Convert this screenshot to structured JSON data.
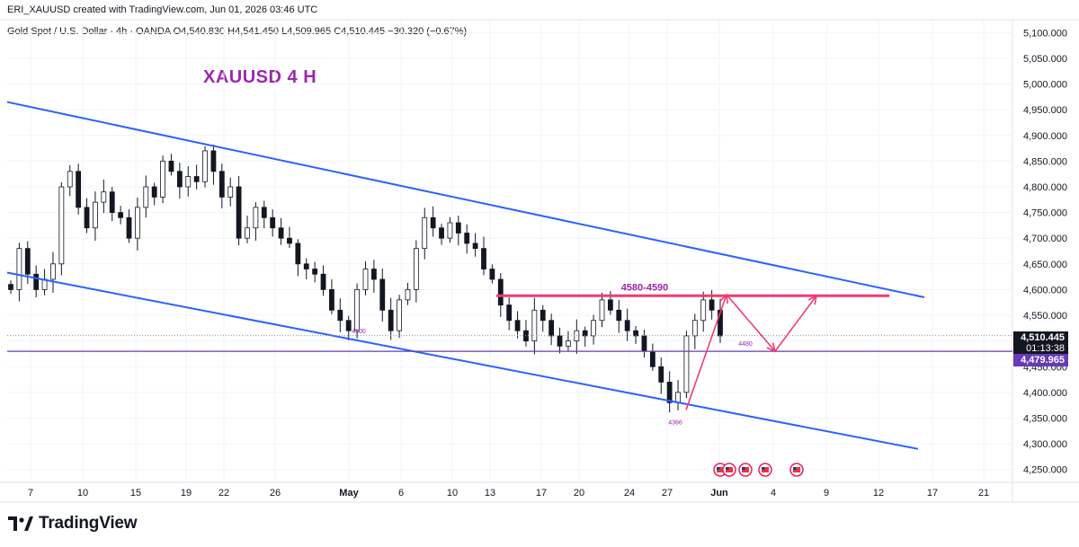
{
  "header": {
    "credit": "ERI_XAUUSD created with TradingView.com, Jun 01, 2026 03:46 UTC",
    "symbol_line": "Gold Spot / U.S. Dollar · 4h · OANDA  O4,540.830  H4,541.450  L4,509.965  C4,510.445  −30.320 (−0.67%)"
  },
  "branding": {
    "logo_text": "TradingView",
    "logo_icon": "tradingview-logo-icon"
  },
  "colors": {
    "up_candle": "#ffffff",
    "down_candle": "#131722",
    "channel": "#2962ff",
    "resistance": "#f23b72",
    "support": "#673ab7",
    "annotation": "#9c27b0",
    "current_price_label": "#131722",
    "support_label": "#673ab7"
  },
  "price_labels": {
    "current_price": "4,510.445",
    "countdown": "01:13:38",
    "support_price": "4,479.965"
  },
  "chart_data": {
    "type": "candlestick",
    "title": "XAUUSD 4 H",
    "interval": "4h",
    "xlabel": "",
    "ylabel": "",
    "ylim": [
      4225,
      5125
    ],
    "x_ticks": [
      "7",
      "10",
      "15",
      "19",
      "22",
      "26",
      "May",
      "6",
      "10",
      "13",
      "17",
      "20",
      "24",
      "27",
      "Jun",
      "4",
      "9",
      "12",
      "17",
      "21"
    ],
    "y_ticks": [
      "4,250.000",
      "4,300.000",
      "4,350.000",
      "4,400.000",
      "4,450.000",
      "4,500.000",
      "4,550.000",
      "4,600.000",
      "4,650.000",
      "4,700.000",
      "4,750.000",
      "4,800.000",
      "4,850.000",
      "4,900.000",
      "4,950.000",
      "5,000.000",
      "5,050.000",
      "5,100.000"
    ],
    "grid": true,
    "approx_close_path": [
      4600,
      4680,
      4630,
      4600,
      4620,
      4650,
      4800,
      4830,
      4760,
      4720,
      4770,
      4790,
      4750,
      4740,
      4700,
      4760,
      4800,
      4780,
      4850,
      4830,
      4800,
      4820,
      4810,
      4870,
      4830,
      4780,
      4800,
      4700,
      4720,
      4760,
      4740,
      4720,
      4700,
      4690,
      4650,
      4640,
      4630,
      4600,
      4560,
      4540,
      4520,
      4600,
      4640,
      4620,
      4560,
      4520,
      4580,
      4600,
      4680,
      4740,
      4720,
      4700,
      4730,
      4710,
      4690,
      4680,
      4640,
      4620,
      4570,
      4540,
      4520,
      4500,
      4560,
      4540,
      4510,
      4490,
      4500,
      4520,
      4510,
      4540,
      4580,
      4560,
      4540,
      4520,
      4510,
      4480,
      4450,
      4420,
      4380,
      4400,
      4510,
      4540,
      4580,
      4560,
      4510
    ],
    "annotations": [
      {
        "text": "4580-4590",
        "kind": "resistance zone",
        "y": 4588
      },
      {
        "text": "4500",
        "kind": "swing low",
        "y": 4515
      },
      {
        "text": "4480",
        "kind": "support",
        "y": 4480
      },
      {
        "text": "4366",
        "kind": "swing low",
        "y": 4366
      }
    ],
    "channel": {
      "upper": {
        "from_price": 4965,
        "to_price": 4585
      },
      "lower": {
        "from_price": 4633,
        "to_price": 4290
      }
    },
    "horizontal_levels": [
      4588,
      4479.965
    ],
    "projection_path_prices": [
      4366,
      4590,
      4480,
      4588
    ]
  }
}
